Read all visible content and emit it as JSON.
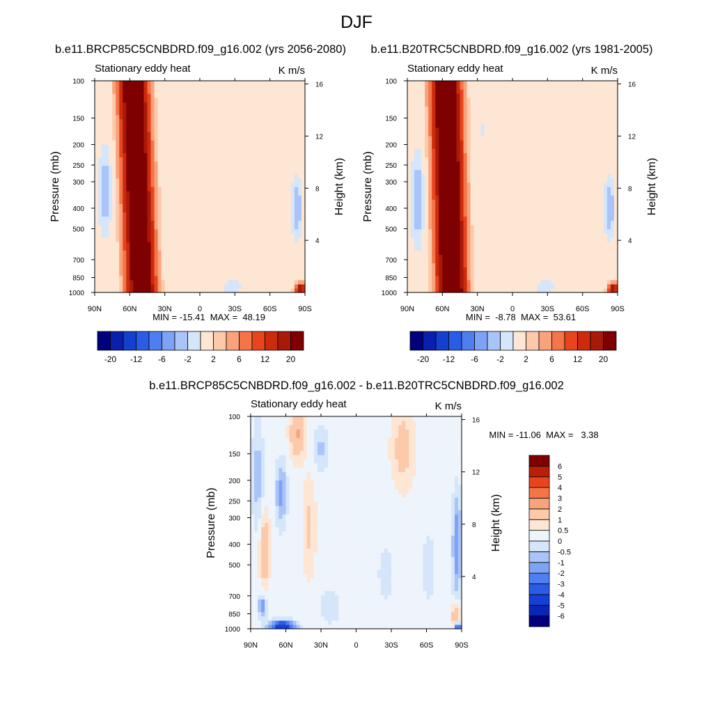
{
  "page": {
    "title": "DJF"
  },
  "panels": {
    "left": {
      "title": "b.e11.BRCP85C5CNBDRD.f09_g16.002 (yrs 2056-2080)",
      "subtitle": "Stationary eddy heat",
      "units": "K m/s",
      "min_max": "MIN = -15.41  MAX =  48.19"
    },
    "right": {
      "title": "b.e11.B20TRC5CNBDRD.f09_g16.002 (yrs 1981-2005)",
      "subtitle": "Stationary eddy heat",
      "units": "K m/s",
      "min_max": "MIN =  -8.78  MAX =  53.61"
    },
    "diff": {
      "title": "b.e11.BRCP85C5CNBDRD.f09_g16.002 - b.e11.B20TRC5CNBDRD.f09_g16.002",
      "subtitle": "Stationary eddy heat",
      "units": "K m/s",
      "min_max": "MIN = -11.06  MAX =   3.38"
    }
  },
  "chart_data": [
    {
      "type": "heatmap",
      "id": "left",
      "title": "b.e11.BRCP85C5CNBDRD.f09_g16.002 (yrs 2056-2080)",
      "subtitle": "Stationary eddy heat",
      "units": "K m/s",
      "xlabel": "",
      "ylabel": "Pressure (mb)",
      "ylabel_right": "Height (km)",
      "xlim": [
        90,
        -90
      ],
      "ylim": [
        1000,
        100
      ],
      "x_ticks": [
        90,
        60,
        30,
        0,
        -30,
        -60,
        -90
      ],
      "x_tick_labels": [
        "90N",
        "60N",
        "30N",
        "0",
        "30S",
        "60S",
        "90S"
      ],
      "y_ticks": [
        100,
        150,
        200,
        250,
        300,
        400,
        500,
        700,
        850,
        1000
      ],
      "y_tick_labels": [
        "100",
        "150",
        "200",
        "250",
        "300",
        "400",
        "500",
        "700",
        "850",
        "1000"
      ],
      "height_ticks_km": [
        4,
        8,
        12,
        16
      ],
      "height_tick_labels": [
        "4",
        "8",
        "12",
        "16"
      ],
      "min": -15.41,
      "max": 48.19,
      "colorbar_levels": [
        -20,
        -16,
        -12,
        -8,
        -6,
        -4,
        -2,
        -1,
        1,
        2,
        4,
        6,
        8,
        12,
        16,
        20
      ],
      "colorbar_tick_labels": [
        "-20",
        "-12",
        "-6",
        "-2",
        "2",
        "6",
        "12",
        "20"
      ],
      "colorbar_colors": [
        "#00007f",
        "#0a1fae",
        "#1440cf",
        "#2a5ce6",
        "#4f7ef0",
        "#7ea3f4",
        "#a9c4f8",
        "#d5e6fb",
        "#fde6d3",
        "#fcc9aa",
        "#f9a37c",
        "#f47548",
        "#e8451e",
        "#cc2b0c",
        "#a8190a",
        "#7f0000"
      ],
      "features": [
        {
          "kind": "jet",
          "lat_top": 57,
          "lat_bottom": 50,
          "half_width": 13,
          "peak": 30
        },
        {
          "kind": "blob",
          "lat": 81,
          "p": 330,
          "rx": 6,
          "ry": 0.5,
          "value": -3
        },
        {
          "kind": "blob",
          "lat": -83,
          "p": 400,
          "rx": 5,
          "ry": 0.35,
          "value": -3
        },
        {
          "kind": "blob",
          "lat": -28,
          "p": 940,
          "rx": 9,
          "ry": 0.08,
          "value": -2
        },
        {
          "kind": "blob",
          "lat": -86,
          "p": 960,
          "rx": 4,
          "ry": 0.06,
          "value": 16
        },
        {
          "kind": "blob",
          "lat": 28,
          "p": 180,
          "rx": 5,
          "ry": 0.2,
          "value": -1
        },
        {
          "kind": "blob",
          "lat": -15,
          "p": 300,
          "rx": 14,
          "ry": 0.6,
          "value": 0.8
        }
      ]
    },
    {
      "type": "heatmap",
      "id": "right",
      "title": "b.e11.B20TRC5CNBDRD.f09_g16.002 (yrs 1981-2005)",
      "subtitle": "Stationary eddy heat",
      "units": "K m/s",
      "xlabel": "",
      "ylabel": "Pressure (mb)",
      "ylabel_right": "Height (km)",
      "xlim": [
        90,
        -90
      ],
      "ylim": [
        1000,
        100
      ],
      "x_ticks": [
        90,
        60,
        30,
        0,
        -30,
        -60,
        -90
      ],
      "x_tick_labels": [
        "90N",
        "60N",
        "30N",
        "0",
        "30S",
        "60S",
        "90S"
      ],
      "y_ticks": [
        100,
        150,
        200,
        250,
        300,
        400,
        500,
        700,
        850,
        1000
      ],
      "y_tick_labels": [
        "100",
        "150",
        "200",
        "250",
        "300",
        "400",
        "500",
        "700",
        "850",
        "1000"
      ],
      "height_ticks_km": [
        4,
        8,
        12,
        16
      ],
      "height_tick_labels": [
        "4",
        "8",
        "12",
        "16"
      ],
      "min": -8.78,
      "max": 53.61,
      "colorbar_levels": [
        -20,
        -16,
        -12,
        -8,
        -6,
        -4,
        -2,
        -1,
        1,
        2,
        4,
        6,
        8,
        12,
        16,
        20
      ],
      "colorbar_tick_labels": [
        "-20",
        "-12",
        "-6",
        "-2",
        "2",
        "6",
        "12",
        "20"
      ],
      "colorbar_colors": [
        "#00007f",
        "#0a1fae",
        "#1440cf",
        "#2a5ce6",
        "#4f7ef0",
        "#7ea3f4",
        "#a9c4f8",
        "#d5e6fb",
        "#fde6d3",
        "#fcc9aa",
        "#f9a37c",
        "#f47548",
        "#e8451e",
        "#cc2b0c",
        "#a8190a",
        "#7f0000"
      ],
      "features": [
        {
          "kind": "jet",
          "lat_top": 57,
          "lat_bottom": 52,
          "half_width": 13,
          "peak": 32
        },
        {
          "kind": "blob",
          "lat": 81,
          "p": 360,
          "rx": 6,
          "ry": 0.55,
          "value": -3
        },
        {
          "kind": "blob",
          "lat": -83,
          "p": 400,
          "rx": 5,
          "ry": 0.35,
          "value": -3
        },
        {
          "kind": "blob",
          "lat": -28,
          "p": 940,
          "rx": 9,
          "ry": 0.08,
          "value": -2
        },
        {
          "kind": "blob",
          "lat": -86,
          "p": 960,
          "rx": 4,
          "ry": 0.06,
          "value": 16
        },
        {
          "kind": "blob",
          "lat": 25,
          "p": 170,
          "rx": 5,
          "ry": 0.2,
          "value": -1.2
        },
        {
          "kind": "blob",
          "lat": -10,
          "p": 300,
          "rx": 14,
          "ry": 0.6,
          "value": 0.8
        }
      ]
    },
    {
      "type": "heatmap",
      "id": "diff",
      "title": "b.e11.BRCP85C5CNBDRD.f09_g16.002 - b.e11.B20TRC5CNBDRD.f09_g16.002",
      "subtitle": "Stationary eddy heat",
      "units": "K m/s",
      "xlabel": "",
      "ylabel": "Pressure (mb)",
      "ylabel_right": "Height (km)",
      "xlim": [
        90,
        -90
      ],
      "ylim": [
        1000,
        100
      ],
      "x_ticks": [
        90,
        60,
        30,
        0,
        -30,
        -60,
        -90
      ],
      "x_tick_labels": [
        "90N",
        "60N",
        "30N",
        "0",
        "30S",
        "60S",
        "90S"
      ],
      "y_ticks": [
        100,
        150,
        200,
        250,
        300,
        400,
        500,
        700,
        850,
        1000
      ],
      "y_tick_labels": [
        "100",
        "150",
        "200",
        "250",
        "300",
        "400",
        "500",
        "700",
        "850",
        "1000"
      ],
      "height_ticks_km": [
        4,
        8,
        12,
        16
      ],
      "height_tick_labels": [
        "4",
        "8",
        "12",
        "16"
      ],
      "min": -11.06,
      "max": 3.38,
      "colorbar_levels": [
        -6,
        -5,
        -4,
        -3,
        -2,
        -1,
        -0.5,
        0,
        0.5,
        1,
        2,
        3,
        4,
        5,
        6
      ],
      "colorbar_tick_labels": [
        "-6",
        "-5",
        "-4",
        "-3",
        "-2",
        "-1",
        "-0.5",
        "0",
        "0.5",
        "1",
        "2",
        "3",
        "4",
        "5",
        "6"
      ],
      "colorbar_colors": [
        "#00007f",
        "#0a26b5",
        "#1440d9",
        "#2a5ce6",
        "#4f7ef0",
        "#7ea3f4",
        "#a9c4f8",
        "#d5e6fb",
        "#eef4fb",
        "#fde6d3",
        "#fcc9aa",
        "#f9a37c",
        "#f47548",
        "#e8451e",
        "#b81e08",
        "#7f0000"
      ],
      "features": [
        {
          "kind": "background",
          "value": 0.3
        },
        {
          "kind": "blob",
          "lat": 78,
          "p": 420,
          "rx": 4,
          "ry": 0.35,
          "value": 1.8
        },
        {
          "kind": "blob",
          "lat": 64,
          "p": 230,
          "rx": 5,
          "ry": 0.35,
          "value": -1.5
        },
        {
          "kind": "blob",
          "lat": 84,
          "p": 190,
          "rx": 5,
          "ry": 0.6,
          "value": -1.1
        },
        {
          "kind": "blob",
          "lat": 50,
          "p": 120,
          "rx": 6,
          "ry": 0.25,
          "value": 1.8
        },
        {
          "kind": "blob",
          "lat": 40,
          "p": 330,
          "rx": 5,
          "ry": 0.5,
          "value": 0.9
        },
        {
          "kind": "blob",
          "lat": 30,
          "p": 140,
          "rx": 7,
          "ry": 0.25,
          "value": -0.9
        },
        {
          "kind": "blob",
          "lat": -40,
          "p": 140,
          "rx": 9,
          "ry": 0.4,
          "value": 1.1
        },
        {
          "kind": "blob",
          "lat": -25,
          "p": 550,
          "rx": 6,
          "ry": 0.3,
          "value": -0.7
        },
        {
          "kind": "blob",
          "lat": 22,
          "p": 780,
          "rx": 9,
          "ry": 0.2,
          "value": -0.7
        },
        {
          "kind": "blob",
          "lat": -62,
          "p": 520,
          "rx": 5,
          "ry": 0.35,
          "value": -0.8
        },
        {
          "kind": "blob",
          "lat": -86,
          "p": 400,
          "rx": 4,
          "ry": 0.55,
          "value": -1.8
        },
        {
          "kind": "blob",
          "lat": 63,
          "p": 970,
          "rx": 10,
          "ry": 0.06,
          "value": -5.5
        },
        {
          "kind": "blob",
          "lat": 80,
          "p": 780,
          "rx": 4,
          "ry": 0.12,
          "value": -1.8
        },
        {
          "kind": "blob",
          "lat": -85,
          "p": 860,
          "rx": 4,
          "ry": 0.12,
          "value": 1.4
        },
        {
          "kind": "blob",
          "lat": -87,
          "p": 980,
          "rx": 3,
          "ry": 0.05,
          "value": -3.5
        }
      ]
    }
  ]
}
